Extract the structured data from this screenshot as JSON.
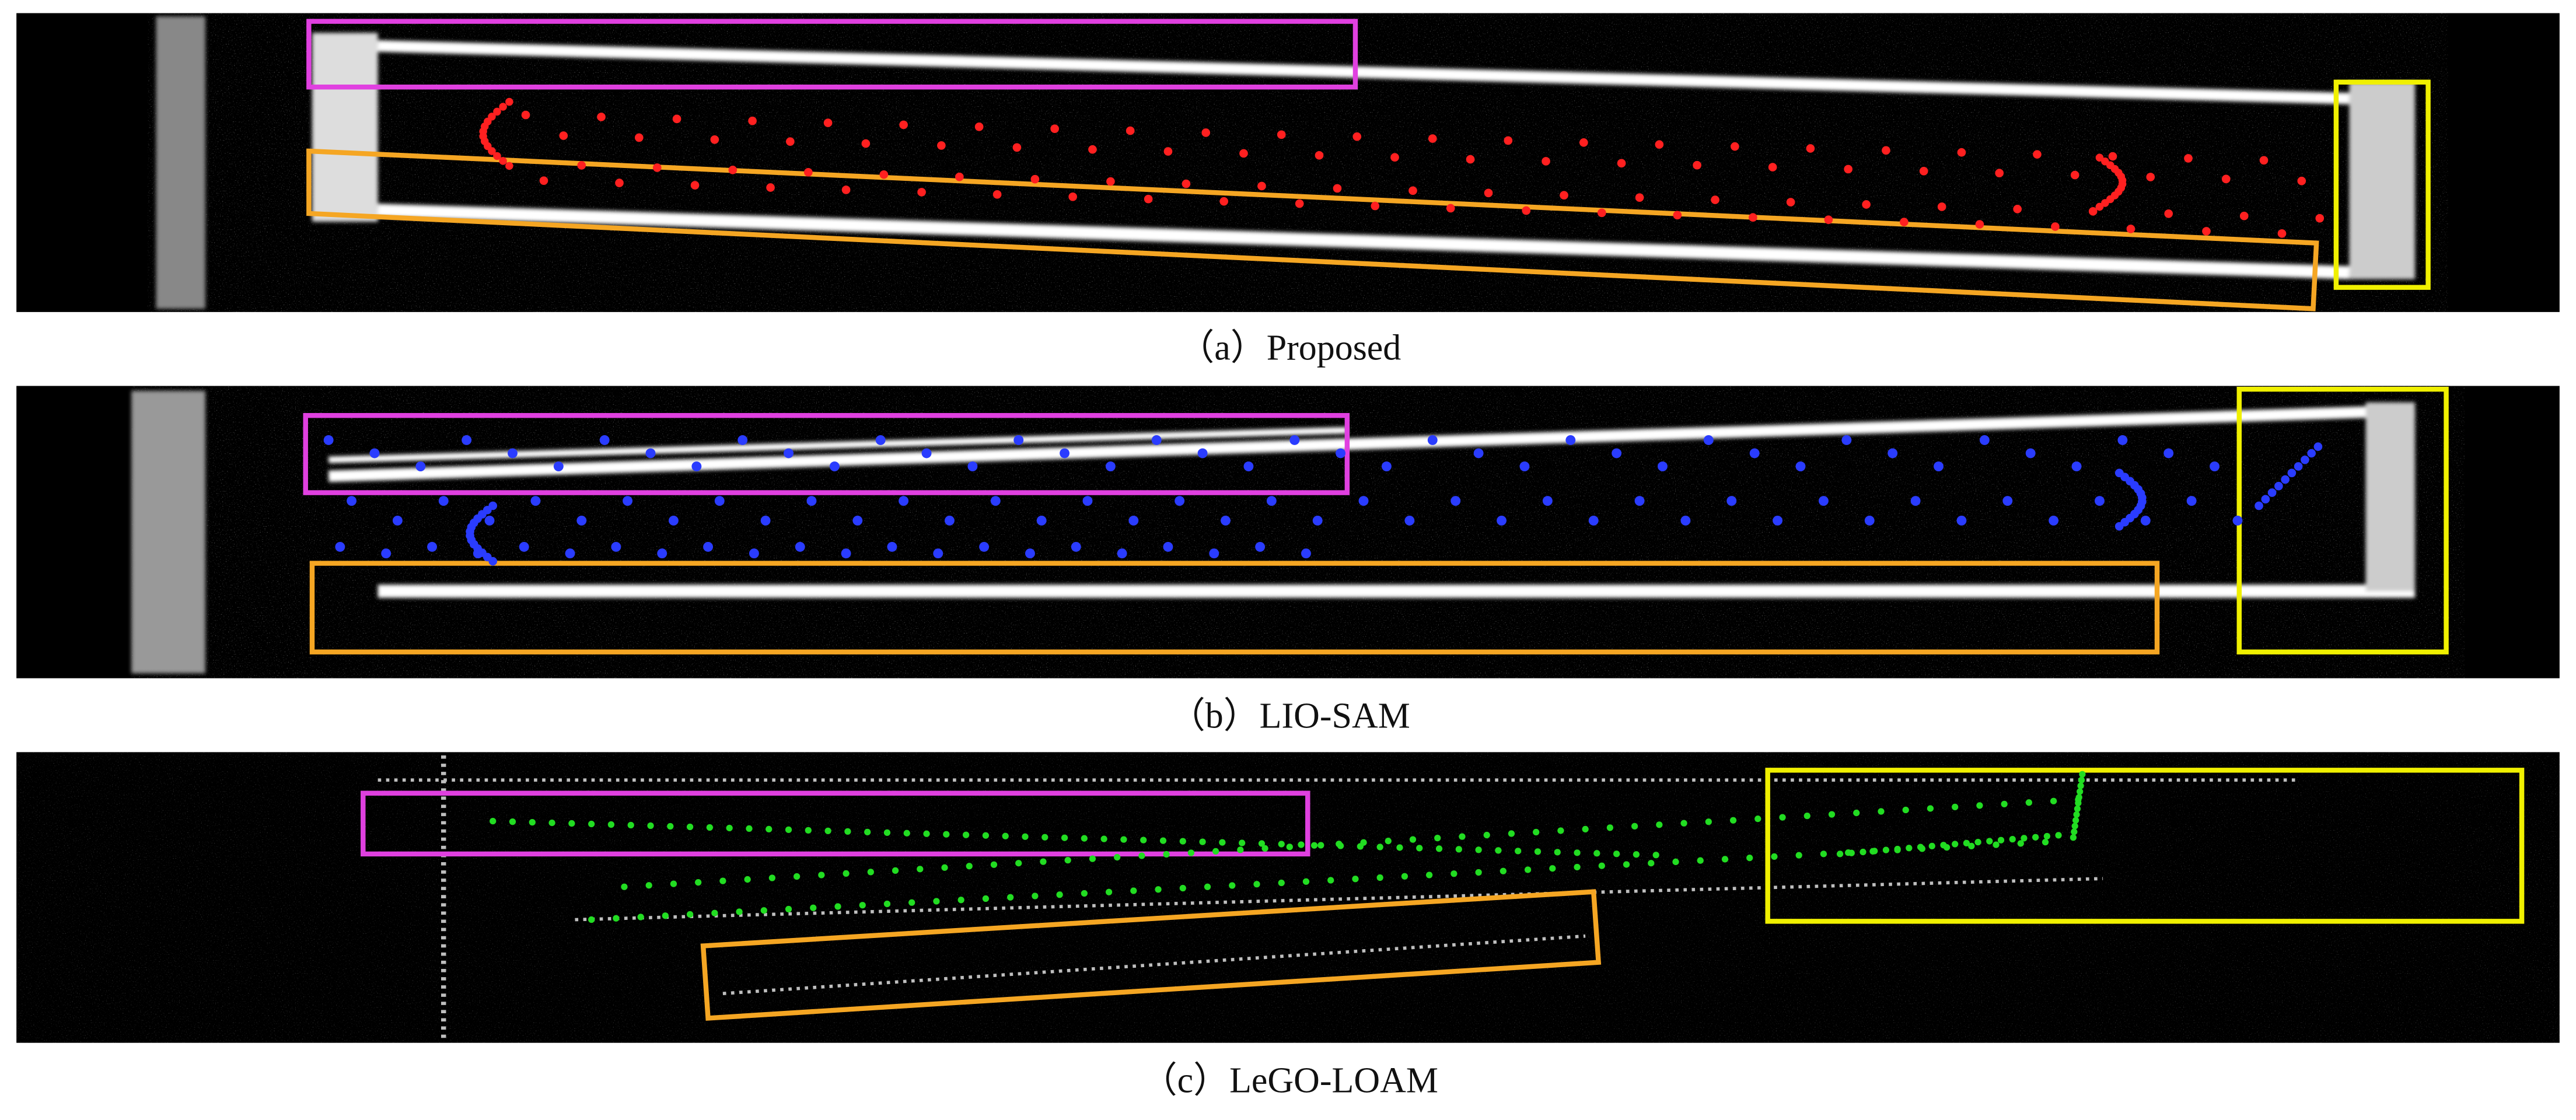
{
  "panels": [
    {
      "caption": "（a）Proposed"
    },
    {
      "caption": "（b）LIO-SAM"
    },
    {
      "caption": "（c）LeGO-LOAM"
    }
  ]
}
